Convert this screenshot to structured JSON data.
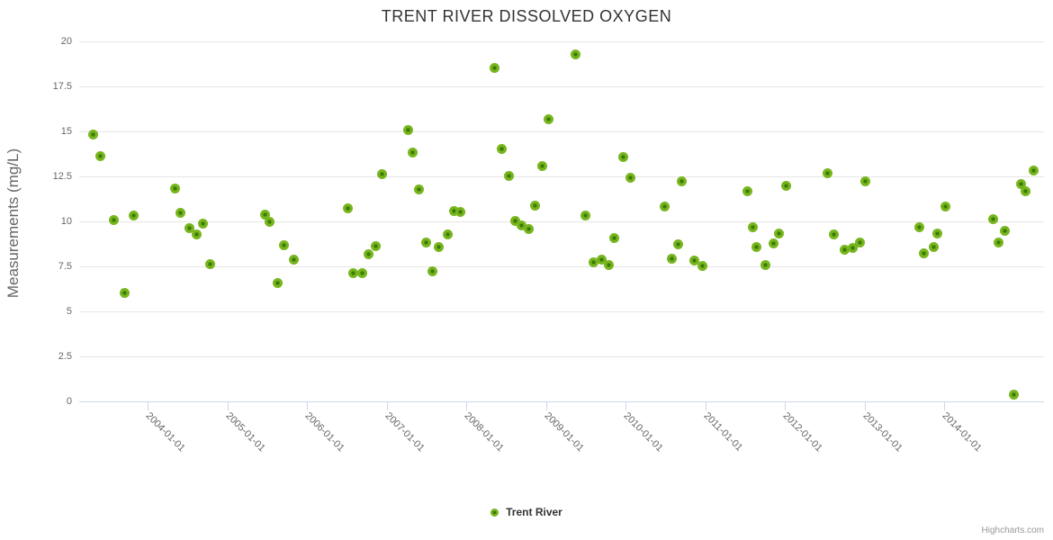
{
  "title": "TRENT RIVER DISSOLVED OXYGEN",
  "legend": {
    "series_label": "Trent River"
  },
  "credit": "Highcharts.com",
  "colors": {
    "marker_outer": "#77b51e",
    "marker_inner": "#3c7a06",
    "gridline": "#e6e6e6",
    "axis_line": "#ccd6eb",
    "title_text": "#333333",
    "axis_label_text": "#666666"
  },
  "chart_data": {
    "type": "scatter",
    "title": "TRENT RIVER DISSOLVED OXYGEN",
    "xlabel": "",
    "ylabel": "Measurements (mg/L)",
    "grid": "horizontal-only",
    "legend_position": "bottom-center",
    "xlim": [
      2003.141,
      2015.254
    ],
    "ylim": [
      0,
      20
    ],
    "y_ticks": [
      "0",
      "2.5",
      "5",
      "7.5",
      "10",
      "12.5",
      "15",
      "17.5",
      "20"
    ],
    "y_tick_values": [
      0,
      2.5,
      5,
      7.5,
      10,
      12.5,
      15,
      17.5,
      20
    ],
    "x_tick_labels": [
      "2004-01-01",
      "2005-01-01",
      "2006-01-01",
      "2007-01-01",
      "2008-01-01",
      "2009-01-01",
      "2010-01-01",
      "2011-01-01",
      "2012-01-01",
      "2013-01-01",
      "2014-01-01"
    ],
    "x_tick_values": [
      2004,
      2005,
      2006,
      2007,
      2008,
      2009,
      2010,
      2011,
      2012,
      2013,
      2014
    ],
    "series": [
      {
        "name": "Trent River",
        "points": [
          [
            2003.32,
            14.85
          ],
          [
            2003.41,
            13.65
          ],
          [
            2003.58,
            10.1
          ],
          [
            2003.71,
            6.05
          ],
          [
            2003.83,
            10.35
          ],
          [
            2004.34,
            11.85
          ],
          [
            2004.41,
            10.5
          ],
          [
            2004.53,
            9.65
          ],
          [
            2004.61,
            9.3
          ],
          [
            2004.7,
            9.9
          ],
          [
            2004.79,
            7.65
          ],
          [
            2005.47,
            10.4
          ],
          [
            2005.53,
            10.0
          ],
          [
            2005.63,
            6.6
          ],
          [
            2005.71,
            8.7
          ],
          [
            2005.84,
            7.9
          ],
          [
            2006.51,
            10.75
          ],
          [
            2006.58,
            7.15
          ],
          [
            2006.69,
            7.15
          ],
          [
            2006.77,
            8.2
          ],
          [
            2006.86,
            8.65
          ],
          [
            2006.94,
            12.65
          ],
          [
            2007.27,
            15.1
          ],
          [
            2007.33,
            13.85
          ],
          [
            2007.41,
            11.8
          ],
          [
            2007.5,
            8.85
          ],
          [
            2007.58,
            7.25
          ],
          [
            2007.66,
            8.6
          ],
          [
            2007.77,
            9.3
          ],
          [
            2007.85,
            10.6
          ],
          [
            2007.93,
            10.55
          ],
          [
            2008.36,
            18.55
          ],
          [
            2008.45,
            14.05
          ],
          [
            2008.54,
            12.55
          ],
          [
            2008.62,
            10.05
          ],
          [
            2008.7,
            9.8
          ],
          [
            2008.78,
            9.6
          ],
          [
            2008.86,
            10.9
          ],
          [
            2008.95,
            13.1
          ],
          [
            2009.03,
            15.7
          ],
          [
            2009.37,
            19.3
          ],
          [
            2009.5,
            10.35
          ],
          [
            2009.6,
            7.75
          ],
          [
            2009.7,
            7.9
          ],
          [
            2009.79,
            7.6
          ],
          [
            2009.86,
            9.1
          ],
          [
            2009.97,
            13.6
          ],
          [
            2010.06,
            12.45
          ],
          [
            2010.49,
            10.85
          ],
          [
            2010.58,
            7.95
          ],
          [
            2010.66,
            8.75
          ],
          [
            2010.71,
            12.25
          ],
          [
            2010.86,
            7.85
          ],
          [
            2010.97,
            7.55
          ],
          [
            2011.53,
            11.7
          ],
          [
            2011.6,
            9.7
          ],
          [
            2011.64,
            8.6
          ],
          [
            2011.76,
            7.6
          ],
          [
            2011.86,
            8.8
          ],
          [
            2011.93,
            9.35
          ],
          [
            2012.02,
            12.0
          ],
          [
            2012.54,
            12.7
          ],
          [
            2012.62,
            9.3
          ],
          [
            2012.75,
            8.45
          ],
          [
            2012.85,
            8.55
          ],
          [
            2012.94,
            8.85
          ],
          [
            2013.01,
            12.25
          ],
          [
            2013.69,
            9.7
          ],
          [
            2013.75,
            8.25
          ],
          [
            2013.87,
            8.6
          ],
          [
            2013.92,
            9.35
          ],
          [
            2014.02,
            10.85
          ],
          [
            2014.62,
            10.15
          ],
          [
            2014.68,
            8.85
          ],
          [
            2014.76,
            9.5
          ],
          [
            2014.87,
            0.4
          ],
          [
            2014.97,
            12.1
          ],
          [
            2015.02,
            11.7
          ],
          [
            2015.12,
            12.85
          ]
        ]
      }
    ]
  }
}
